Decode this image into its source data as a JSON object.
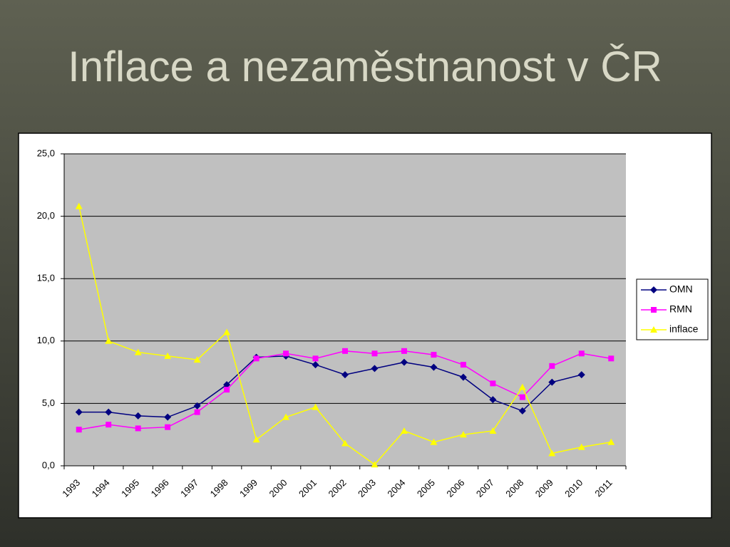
{
  "chart_data": {
    "type": "line",
    "title": "Inflace a nezaměstnanost v ČR",
    "categories": [
      "1993",
      "1994",
      "1995",
      "1996",
      "1997",
      "1998",
      "1999",
      "2000",
      "2001",
      "2002",
      "2003",
      "2004",
      "2005",
      "2006",
      "2007",
      "2008",
      "2009",
      "2010",
      "2011"
    ],
    "series": [
      {
        "name": "OMN",
        "color": "#000080",
        "marker": "diamond",
        "values": [
          4.3,
          4.3,
          4.0,
          3.9,
          4.8,
          6.5,
          8.7,
          8.8,
          8.1,
          7.3,
          7.8,
          8.3,
          7.9,
          7.1,
          5.3,
          4.4,
          6.7,
          7.3,
          null
        ]
      },
      {
        "name": "RMN",
        "color": "#ff00ff",
        "marker": "square",
        "values": [
          2.9,
          3.3,
          3.0,
          3.1,
          4.3,
          6.1,
          8.6,
          9.0,
          8.6,
          9.2,
          9.0,
          9.2,
          8.9,
          8.1,
          6.6,
          5.5,
          8.0,
          9.0,
          8.6
        ]
      },
      {
        "name": "inflace",
        "color": "#ffff00",
        "marker": "triangle",
        "values": [
          20.8,
          10.0,
          9.1,
          8.8,
          8.5,
          10.7,
          2.1,
          3.9,
          4.7,
          1.8,
          0.1,
          2.8,
          1.9,
          2.5,
          2.8,
          6.3,
          1.0,
          1.5,
          1.9
        ]
      }
    ],
    "ylim": [
      0,
      25
    ],
    "yticks": [
      {
        "value": 0,
        "label": "0,0"
      },
      {
        "value": 5,
        "label": "5,0"
      },
      {
        "value": 10,
        "label": "10,0"
      },
      {
        "value": 15,
        "label": "15,0"
      },
      {
        "value": 20,
        "label": "20,0"
      },
      {
        "value": 25,
        "label": "25,0"
      }
    ],
    "grid": true,
    "legend": "right"
  }
}
